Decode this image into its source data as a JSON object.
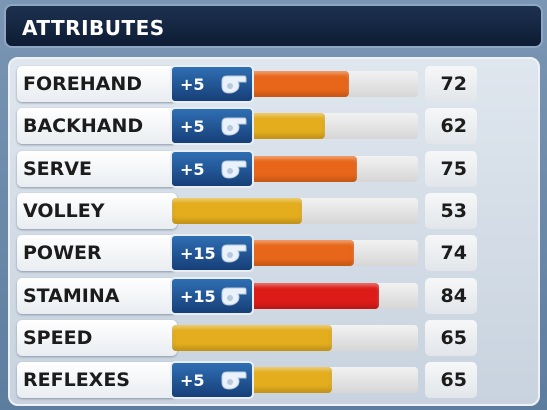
{
  "header": {
    "title": "ATTRIBUTES"
  },
  "rows": [
    {
      "label": "FOREHAND",
      "bonus": "+5",
      "value": 72,
      "color": "#e8661a"
    },
    {
      "label": "BACKHAND",
      "bonus": "+5",
      "value": 62,
      "color": "#e3ad1e"
    },
    {
      "label": "SERVE",
      "bonus": "+5",
      "value": 75,
      "color": "#e8661a"
    },
    {
      "label": "VOLLEY",
      "value": 53,
      "color": "#e3ad1e"
    },
    {
      "label": "POWER",
      "bonus": "+15",
      "value": 74,
      "color": "#e8661a"
    },
    {
      "label": "STAMINA",
      "bonus": "+15",
      "value": 84,
      "color": "#dd1c18"
    },
    {
      "label": "SPEED",
      "value": 65,
      "color": "#e3ad1e"
    },
    {
      "label": "REFLEXES",
      "bonus": "+5",
      "value": 65,
      "color": "#e3ad1e"
    }
  ]
}
